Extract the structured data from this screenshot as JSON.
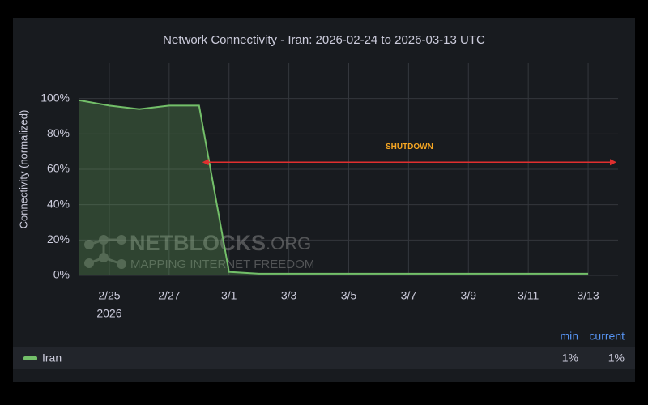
{
  "chart_data": {
    "type": "area",
    "title": "Network Connectivity - Iran: 2026-02-24 to 2026-03-13 UTC",
    "y_label": "Connectivity (normalized)",
    "x": [
      "2026-02-24",
      "2026-02-25",
      "2026-02-26",
      "2026-02-27",
      "2026-02-28",
      "2026-03-01",
      "2026-03-02",
      "2026-03-03",
      "2026-03-04",
      "2026-03-05",
      "2026-03-06",
      "2026-03-07",
      "2026-03-08",
      "2026-03-09",
      "2026-03-10",
      "2026-03-11",
      "2026-03-12",
      "2026-03-13"
    ],
    "series": [
      {
        "name": "Iran",
        "color": "#73bf69",
        "values": [
          99,
          96,
          94,
          96,
          96,
          2,
          1,
          1,
          1,
          1,
          1,
          1,
          1,
          1,
          1,
          1,
          1,
          1
        ]
      }
    ],
    "xlim": [
      "2026-02-24",
      "2026-03-14"
    ],
    "xticks": [
      {
        "value": "2026-02-25",
        "label": "2/25"
      },
      {
        "value": "2026-02-27",
        "label": "2/27"
      },
      {
        "value": "2026-03-01",
        "label": "3/1"
      },
      {
        "value": "2026-03-03",
        "label": "3/3"
      },
      {
        "value": "2026-03-05",
        "label": "3/5"
      },
      {
        "value": "2026-03-07",
        "label": "3/7"
      },
      {
        "value": "2026-03-09",
        "label": "3/9"
      },
      {
        "value": "2026-03-11",
        "label": "3/11"
      },
      {
        "value": "2026-03-13",
        "label": "3/13"
      }
    ],
    "x_year_label": "2026",
    "ylim": [
      0,
      120
    ],
    "yticks": [
      {
        "value": 0,
        "label": "0%"
      },
      {
        "value": 20,
        "label": "20%"
      },
      {
        "value": 40,
        "label": "40%"
      },
      {
        "value": 60,
        "label": "60%"
      },
      {
        "value": 80,
        "label": "80%"
      },
      {
        "value": 100,
        "label": "100%"
      }
    ],
    "grid": true,
    "annotation": {
      "text": "SHUTDOWN",
      "x_start": "2026-02-28",
      "x_end": "2026-03-14",
      "y": 64,
      "color": "#e02f2f"
    },
    "watermark": {
      "name": "NETBLOCKS",
      "suffix": ".ORG",
      "tagline": "MAPPING INTERNET FREEDOM"
    },
    "legend": {
      "columns": [
        "min",
        "current"
      ],
      "values": [
        "1%",
        "1%"
      ]
    }
  }
}
